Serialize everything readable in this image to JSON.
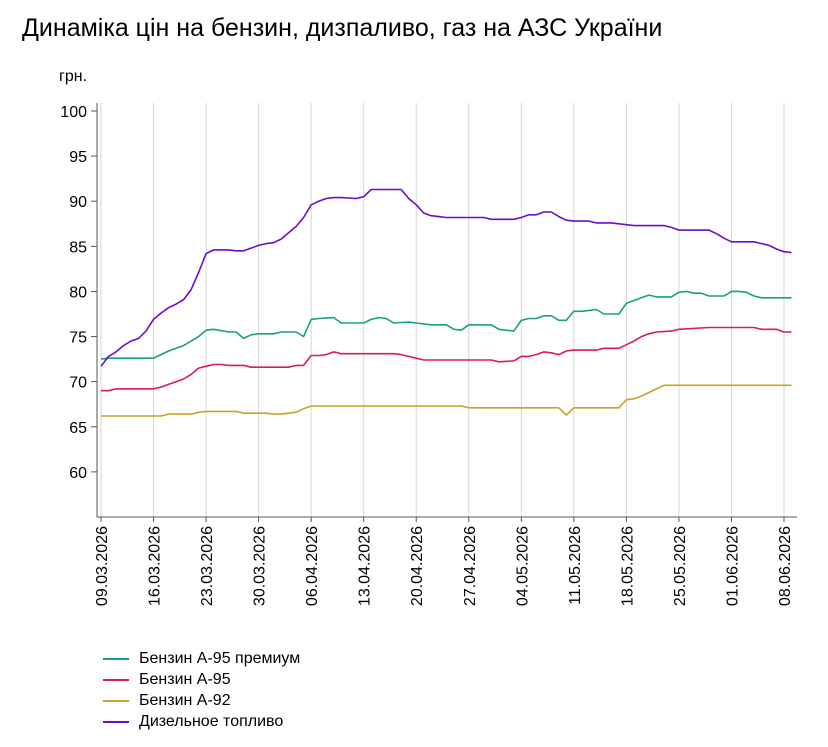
{
  "title": "Динаміка цін на бензин, дизпаливо, газ на АЗС України",
  "chart_data": {
    "type": "line",
    "ylabel": "грн.",
    "ylim": [
      55,
      100
    ],
    "yticks": [
      60,
      65,
      70,
      75,
      80,
      85,
      90,
      95,
      100
    ],
    "xlim": [
      "2026-03-09",
      "2026-06-09"
    ],
    "xtick_labels": [
      "09.03.2026",
      "16.03.2026",
      "23.03.2026",
      "30.03.2026",
      "06.04.2026",
      "13.04.2026",
      "20.04.2026",
      "27.04.2026",
      "04.05.2026",
      "11.05.2026",
      "18.05.2026",
      "25.05.2026",
      "01.06.2026",
      "08.06.2026"
    ],
    "xtick_dates": [
      "2026-03-09",
      "2026-03-16",
      "2026-03-23",
      "2026-03-30",
      "2026-04-06",
      "2026-04-13",
      "2026-04-20",
      "2026-04-27",
      "2026-05-04",
      "2026-05-11",
      "2026-05-18",
      "2026-05-25",
      "2026-06-01",
      "2026-06-08"
    ],
    "grid": "vertical",
    "legend_position": "bottom",
    "series": [
      {
        "name": "Бензин А-95 премиум",
        "color": "#16a085",
        "points": [
          [
            "2026-03-09",
            72.5
          ],
          [
            "2026-03-10",
            72.6
          ],
          [
            "2026-03-12",
            72.6
          ],
          [
            "2026-03-14",
            72.6
          ],
          [
            "2026-03-16",
            72.6
          ],
          [
            "2026-03-17",
            73.0
          ],
          [
            "2026-03-18",
            73.4
          ],
          [
            "2026-03-19",
            73.7
          ],
          [
            "2026-03-20",
            74.0
          ],
          [
            "2026-03-21",
            74.5
          ],
          [
            "2026-03-22",
            75.0
          ],
          [
            "2026-03-23",
            75.7
          ],
          [
            "2026-03-24",
            75.8
          ],
          [
            "2026-03-26",
            75.5
          ],
          [
            "2026-03-27",
            75.5
          ],
          [
            "2026-03-28",
            74.8
          ],
          [
            "2026-03-29",
            75.2
          ],
          [
            "2026-03-30",
            75.3
          ],
          [
            "2026-04-01",
            75.3
          ],
          [
            "2026-04-02",
            75.5
          ],
          [
            "2026-04-04",
            75.5
          ],
          [
            "2026-04-05",
            75.0
          ],
          [
            "2026-04-06",
            76.9
          ],
          [
            "2026-04-07",
            77.0
          ],
          [
            "2026-04-09",
            77.1
          ],
          [
            "2026-04-10",
            76.5
          ],
          [
            "2026-04-13",
            76.5
          ],
          [
            "2026-04-14",
            76.9
          ],
          [
            "2026-04-15",
            77.1
          ],
          [
            "2026-04-16",
            77.0
          ],
          [
            "2026-04-17",
            76.5
          ],
          [
            "2026-04-19",
            76.6
          ],
          [
            "2026-04-20",
            76.5
          ],
          [
            "2026-04-22",
            76.3
          ],
          [
            "2026-04-24",
            76.3
          ],
          [
            "2026-04-25",
            75.8
          ],
          [
            "2026-04-26",
            75.7
          ],
          [
            "2026-04-27",
            76.3
          ],
          [
            "2026-04-30",
            76.3
          ],
          [
            "2026-05-01",
            75.8
          ],
          [
            "2026-05-03",
            75.6
          ],
          [
            "2026-05-04",
            76.8
          ],
          [
            "2026-05-05",
            77.0
          ],
          [
            "2026-05-06",
            77.0
          ],
          [
            "2026-05-07",
            77.3
          ],
          [
            "2026-05-08",
            77.3
          ],
          [
            "2026-05-09",
            76.8
          ],
          [
            "2026-05-10",
            76.8
          ],
          [
            "2026-05-11",
            77.8
          ],
          [
            "2026-05-12",
            77.8
          ],
          [
            "2026-05-13",
            77.9
          ],
          [
            "2026-05-14",
            78.0
          ],
          [
            "2026-05-15",
            77.5
          ],
          [
            "2026-05-17",
            77.5
          ],
          [
            "2026-05-18",
            78.7
          ],
          [
            "2026-05-19",
            79.0
          ],
          [
            "2026-05-20",
            79.3
          ],
          [
            "2026-05-21",
            79.6
          ],
          [
            "2026-05-22",
            79.4
          ],
          [
            "2026-05-24",
            79.4
          ],
          [
            "2026-05-25",
            79.9
          ],
          [
            "2026-05-26",
            80.0
          ],
          [
            "2026-05-27",
            79.8
          ],
          [
            "2026-05-28",
            79.8
          ],
          [
            "2026-05-29",
            79.5
          ],
          [
            "2026-05-31",
            79.5
          ],
          [
            "2026-06-01",
            80.0
          ],
          [
            "2026-06-02",
            80.0
          ],
          [
            "2026-06-03",
            79.9
          ],
          [
            "2026-06-04",
            79.5
          ],
          [
            "2026-06-05",
            79.3
          ],
          [
            "2026-06-09",
            79.3
          ]
        ]
      },
      {
        "name": "Бензин А-95",
        "color": "#d81b60",
        "points": [
          [
            "2026-03-09",
            69.0
          ],
          [
            "2026-03-10",
            69.0
          ],
          [
            "2026-03-11",
            69.2
          ],
          [
            "2026-03-14",
            69.2
          ],
          [
            "2026-03-16",
            69.2
          ],
          [
            "2026-03-17",
            69.4
          ],
          [
            "2026-03-18",
            69.7
          ],
          [
            "2026-03-19",
            70.0
          ],
          [
            "2026-03-20",
            70.3
          ],
          [
            "2026-03-21",
            70.8
          ],
          [
            "2026-03-22",
            71.5
          ],
          [
            "2026-03-23",
            71.7
          ],
          [
            "2026-03-24",
            71.9
          ],
          [
            "2026-03-25",
            71.9
          ],
          [
            "2026-03-26",
            71.8
          ],
          [
            "2026-03-28",
            71.8
          ],
          [
            "2026-03-29",
            71.6
          ],
          [
            "2026-04-03",
            71.6
          ],
          [
            "2026-04-04",
            71.8
          ],
          [
            "2026-04-05",
            71.8
          ],
          [
            "2026-04-06",
            72.9
          ],
          [
            "2026-04-07",
            72.9
          ],
          [
            "2026-04-08",
            73.0
          ],
          [
            "2026-04-09",
            73.3
          ],
          [
            "2026-04-10",
            73.1
          ],
          [
            "2026-04-17",
            73.1
          ],
          [
            "2026-04-18",
            73.0
          ],
          [
            "2026-04-19",
            72.8
          ],
          [
            "2026-04-20",
            72.6
          ],
          [
            "2026-04-21",
            72.4
          ],
          [
            "2026-04-30",
            72.4
          ],
          [
            "2026-05-01",
            72.2
          ],
          [
            "2026-05-03",
            72.3
          ],
          [
            "2026-05-04",
            72.8
          ],
          [
            "2026-05-05",
            72.8
          ],
          [
            "2026-05-06",
            73.0
          ],
          [
            "2026-05-07",
            73.3
          ],
          [
            "2026-05-08",
            73.2
          ],
          [
            "2026-05-09",
            73.0
          ],
          [
            "2026-05-10",
            73.4
          ],
          [
            "2026-05-11",
            73.5
          ],
          [
            "2026-05-14",
            73.5
          ],
          [
            "2026-05-15",
            73.7
          ],
          [
            "2026-05-17",
            73.7
          ],
          [
            "2026-05-18",
            74.1
          ],
          [
            "2026-05-19",
            74.5
          ],
          [
            "2026-05-20",
            75.0
          ],
          [
            "2026-05-21",
            75.3
          ],
          [
            "2026-05-22",
            75.5
          ],
          [
            "2026-05-24",
            75.6
          ],
          [
            "2026-05-25",
            75.8
          ],
          [
            "2026-05-29",
            76.0
          ],
          [
            "2026-06-04",
            76.0
          ],
          [
            "2026-06-05",
            75.8
          ],
          [
            "2026-06-06",
            75.8
          ],
          [
            "2026-06-07",
            75.8
          ],
          [
            "2026-06-08",
            75.5
          ],
          [
            "2026-06-09",
            75.5
          ]
        ]
      },
      {
        "name": "Бензин А-92",
        "color": "#c9a227",
        "points": [
          [
            "2026-03-09",
            66.2
          ],
          [
            "2026-03-17",
            66.2
          ],
          [
            "2026-03-18",
            66.4
          ],
          [
            "2026-03-21",
            66.4
          ],
          [
            "2026-03-22",
            66.6
          ],
          [
            "2026-03-23",
            66.7
          ],
          [
            "2026-03-27",
            66.7
          ],
          [
            "2026-03-28",
            66.5
          ],
          [
            "2026-03-31",
            66.5
          ],
          [
            "2026-04-01",
            66.4
          ],
          [
            "2026-04-02",
            66.4
          ],
          [
            "2026-04-03",
            66.5
          ],
          [
            "2026-04-04",
            66.6
          ],
          [
            "2026-04-05",
            67.0
          ],
          [
            "2026-04-06",
            67.3
          ],
          [
            "2026-04-26",
            67.3
          ],
          [
            "2026-04-27",
            67.1
          ],
          [
            "2026-05-09",
            67.1
          ],
          [
            "2026-05-10",
            66.3
          ],
          [
            "2026-05-11",
            67.1
          ],
          [
            "2026-05-17",
            67.1
          ],
          [
            "2026-05-18",
            68.0
          ],
          [
            "2026-05-19",
            68.1
          ],
          [
            "2026-05-20",
            68.4
          ],
          [
            "2026-05-21",
            68.8
          ],
          [
            "2026-05-22",
            69.2
          ],
          [
            "2026-05-23",
            69.6
          ],
          [
            "2026-06-09",
            69.6
          ]
        ]
      },
      {
        "name": "Дизельное топливо",
        "color": "#6a0dcc",
        "points": [
          [
            "2026-03-09",
            71.7
          ],
          [
            "2026-03-10",
            72.8
          ],
          [
            "2026-03-11",
            73.3
          ],
          [
            "2026-03-12",
            74.0
          ],
          [
            "2026-03-13",
            74.5
          ],
          [
            "2026-03-14",
            74.8
          ],
          [
            "2026-03-15",
            75.6
          ],
          [
            "2026-03-16",
            76.9
          ],
          [
            "2026-03-17",
            77.6
          ],
          [
            "2026-03-18",
            78.2
          ],
          [
            "2026-03-19",
            78.6
          ],
          [
            "2026-03-20",
            79.1
          ],
          [
            "2026-03-21",
            80.2
          ],
          [
            "2026-03-22",
            82.1
          ],
          [
            "2026-03-23",
            84.2
          ],
          [
            "2026-03-24",
            84.6
          ],
          [
            "2026-03-26",
            84.6
          ],
          [
            "2026-03-27",
            84.5
          ],
          [
            "2026-03-28",
            84.5
          ],
          [
            "2026-03-29",
            84.8
          ],
          [
            "2026-03-30",
            85.1
          ],
          [
            "2026-03-31",
            85.3
          ],
          [
            "2026-04-01",
            85.4
          ],
          [
            "2026-04-02",
            85.8
          ],
          [
            "2026-04-03",
            86.5
          ],
          [
            "2026-04-04",
            87.2
          ],
          [
            "2026-04-05",
            88.2
          ],
          [
            "2026-04-06",
            89.6
          ],
          [
            "2026-04-07",
            90.0
          ],
          [
            "2026-04-08",
            90.3
          ],
          [
            "2026-04-09",
            90.4
          ],
          [
            "2026-04-10",
            90.4
          ],
          [
            "2026-04-12",
            90.3
          ],
          [
            "2026-04-13",
            90.5
          ],
          [
            "2026-04-14",
            91.3
          ],
          [
            "2026-04-18",
            91.3
          ],
          [
            "2026-04-19",
            90.3
          ],
          [
            "2026-04-20",
            89.6
          ],
          [
            "2026-04-21",
            88.7
          ],
          [
            "2026-04-22",
            88.4
          ],
          [
            "2026-04-23",
            88.3
          ],
          [
            "2026-04-24",
            88.2
          ],
          [
            "2026-04-29",
            88.2
          ],
          [
            "2026-04-30",
            88.0
          ],
          [
            "2026-05-03",
            88.0
          ],
          [
            "2026-05-04",
            88.2
          ],
          [
            "2026-05-05",
            88.5
          ],
          [
            "2026-05-06",
            88.5
          ],
          [
            "2026-05-07",
            88.8
          ],
          [
            "2026-05-08",
            88.8
          ],
          [
            "2026-05-09",
            88.3
          ],
          [
            "2026-05-10",
            87.9
          ],
          [
            "2026-05-11",
            87.8
          ],
          [
            "2026-05-13",
            87.8
          ],
          [
            "2026-05-14",
            87.6
          ],
          [
            "2026-05-16",
            87.6
          ],
          [
            "2026-05-17",
            87.5
          ],
          [
            "2026-05-19",
            87.3
          ],
          [
            "2026-05-22",
            87.3
          ],
          [
            "2026-05-23",
            87.3
          ],
          [
            "2026-05-24",
            87.1
          ],
          [
            "2026-05-25",
            86.8
          ],
          [
            "2026-05-29",
            86.8
          ],
          [
            "2026-05-30",
            86.4
          ],
          [
            "2026-05-31",
            85.9
          ],
          [
            "2026-06-01",
            85.5
          ],
          [
            "2026-06-04",
            85.5
          ],
          [
            "2026-06-05",
            85.3
          ],
          [
            "2026-06-06",
            85.1
          ],
          [
            "2026-06-07",
            84.7
          ],
          [
            "2026-06-08",
            84.4
          ],
          [
            "2026-06-09",
            84.3
          ]
        ]
      }
    ]
  }
}
